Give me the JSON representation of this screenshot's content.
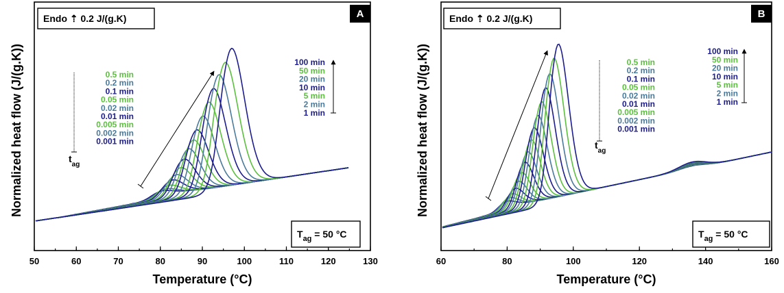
{
  "chart_data": [
    {
      "type": "line",
      "panel_label": "A",
      "ylabel": "Normalized heat flow (J/(g.K))",
      "xlabel": "Temperature (°C)",
      "xlim": [
        50,
        130
      ],
      "xticks": [
        50,
        60,
        70,
        80,
        90,
        100,
        110,
        120,
        130
      ],
      "scale_box": "Endo ⇡ 0.2 J/(g.K)",
      "condition_box": {
        "main": "T",
        "sub": "ag",
        "rest": " = 50 °C"
      },
      "arrow_label": {
        "main": "t",
        "sub": "ag"
      },
      "legend_short": [
        "0.5 min",
        "0.2 min",
        "0.1 min",
        "0.05 min",
        "0.02 min",
        "0.01 min",
        "0.005 min",
        "0.002 min",
        "0.001 min"
      ],
      "legend_long": [
        "100 min",
        "50 min",
        "20 min",
        "10 min",
        "5 min",
        "2 min",
        "1 min"
      ],
      "series": [
        {
          "name": "0.001 min",
          "peak_x": 80.0,
          "peak_height": 0.02
        },
        {
          "name": "0.002 min",
          "peak_x": 80.8,
          "peak_height": 0.03
        },
        {
          "name": "0.005 min",
          "peak_x": 81.6,
          "peak_height": 0.05
        },
        {
          "name": "0.01 min",
          "peak_x": 82.4,
          "peak_height": 0.08
        },
        {
          "name": "0.02 min",
          "peak_x": 83.3,
          "peak_height": 0.11
        },
        {
          "name": "0.05 min",
          "peak_x": 84.3,
          "peak_height": 0.15
        },
        {
          "name": "0.1 min",
          "peak_x": 85.1,
          "peak_height": 0.2
        },
        {
          "name": "0.2 min",
          "peak_x": 86.2,
          "peak_height": 0.26
        },
        {
          "name": "0.5 min",
          "peak_x": 87.3,
          "peak_height": 0.31
        },
        {
          "name": "1 min",
          "peak_x": 88.1,
          "peak_height": 0.37
        },
        {
          "name": "2 min",
          "peak_x": 89.5,
          "peak_height": 0.45
        },
        {
          "name": "5 min",
          "peak_x": 90.9,
          "peak_height": 0.53
        },
        {
          "name": "10 min",
          "peak_x": 92.0,
          "peak_height": 0.61
        },
        {
          "name": "20 min",
          "peak_x": 93.3,
          "peak_height": 0.69
        },
        {
          "name": "50 min",
          "peak_x": 94.8,
          "peak_height": 0.76
        },
        {
          "name": "100 min",
          "peak_x": 96.3,
          "peak_height": 0.84
        }
      ]
    },
    {
      "type": "line",
      "panel_label": "B",
      "ylabel": "Normalized heat flow (J/(g.K))",
      "xlabel": "Temperature (°C)",
      "xlim": [
        60,
        160
      ],
      "xticks": [
        60,
        80,
        100,
        120,
        140,
        160
      ],
      "scale_box": "Endo ⇡ 0.2 J/(g.K)",
      "condition_box": {
        "main": "T",
        "sub": "ag",
        "rest": " = 50 °C"
      },
      "arrow_label": {
        "main": "t",
        "sub": "ag"
      },
      "legend_short": [
        "0.5 min",
        "0.2 min",
        "0.1 min",
        "0.05 min",
        "0.02 min",
        "0.01 min",
        "0.005 min",
        "0.002 min",
        "0.001 min"
      ],
      "legend_long": [
        "100 min",
        "50 min",
        "20 min",
        "10 min",
        "5 min",
        "2 min",
        "1 min"
      ],
      "series": [
        {
          "name": "0.001 min",
          "peak_x": 79.5,
          "peak_height": 0.03
        },
        {
          "name": "0.002 min",
          "peak_x": 80.2,
          "peak_height": 0.05
        },
        {
          "name": "0.005 min",
          "peak_x": 81.0,
          "peak_height": 0.07
        },
        {
          "name": "0.01 min",
          "peak_x": 82.0,
          "peak_height": 0.1
        },
        {
          "name": "0.02 min",
          "peak_x": 82.9,
          "peak_height": 0.14
        },
        {
          "name": "0.05 min",
          "peak_x": 83.8,
          "peak_height": 0.19
        },
        {
          "name": "0.1 min",
          "peak_x": 84.8,
          "peak_height": 0.25
        },
        {
          "name": "0.2 min",
          "peak_x": 85.7,
          "peak_height": 0.31
        },
        {
          "name": "0.5 min",
          "peak_x": 86.7,
          "peak_height": 0.38
        },
        {
          "name": "1 min",
          "peak_x": 87.6,
          "peak_height": 0.45
        },
        {
          "name": "2 min",
          "peak_x": 88.7,
          "peak_height": 0.52
        },
        {
          "name": "5 min",
          "peak_x": 89.8,
          "peak_height": 0.6
        },
        {
          "name": "10 min",
          "peak_x": 91.0,
          "peak_height": 0.68
        },
        {
          "name": "20 min",
          "peak_x": 92.2,
          "peak_height": 0.76
        },
        {
          "name": "50 min",
          "peak_x": 93.5,
          "peak_height": 0.85
        },
        {
          "name": "100 min",
          "peak_x": 94.8,
          "peak_height": 0.93
        }
      ]
    }
  ],
  "colors": {
    "series_cycle": [
      "#1c1c8c",
      "#4a7a9b",
      "#5cbf3f"
    ],
    "legend_short": [
      "#5cbf3f",
      "#4a7a9b",
      "#1c1c8c",
      "#5cbf3f",
      "#4a7a9b",
      "#1c1c8c",
      "#5cbf3f",
      "#4a7a9b",
      "#1c1c8c"
    ],
    "legend_long": [
      "#1c1c8c",
      "#5cbf3f",
      "#4a7a9b",
      "#1c1c8c",
      "#5cbf3f",
      "#4a7a9b",
      "#1c1c8c"
    ]
  }
}
